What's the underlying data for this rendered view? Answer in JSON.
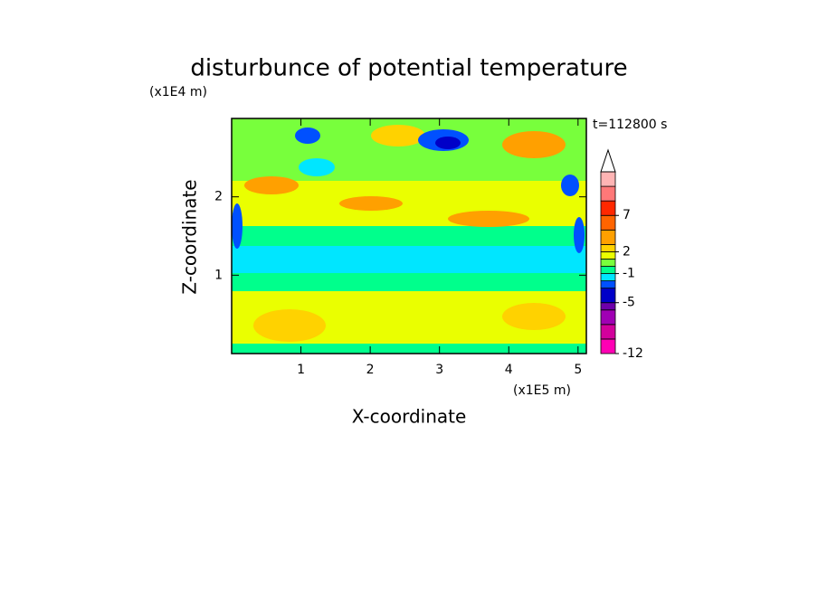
{
  "chart_data": {
    "type": "contour",
    "title": "disturbunce of potential temperature",
    "x_label": "X-coordinate",
    "y_label": "Z-coordinate",
    "x_unit": "(x1E5 m)",
    "y_unit": "(x1E4 m)",
    "annotation": "t=112800 s",
    "xlim": [
      0,
      5.12
    ],
    "xticks": [
      1,
      2,
      3,
      4,
      5
    ],
    "ylim": [
      0,
      3
    ],
    "yticks": [
      1,
      2
    ],
    "colorbar": {
      "levels": [
        -12,
        -10,
        -8,
        -6,
        -5,
        -3,
        -2,
        -1,
        0,
        1,
        2,
        3,
        5,
        7,
        9,
        11,
        13
      ],
      "colors": [
        "#ff00b4",
        "#d2009c",
        "#a000b4",
        "#6e00aa",
        "#0000c8",
        "#0050ff",
        "#00e6ff",
        "#00ff8c",
        "#78ff3c",
        "#eaff00",
        "#ffd200",
        "#ffa000",
        "#ff6400",
        "#ff2800",
        "#ff7878",
        "#ffb4b4"
      ],
      "ticks": [
        -12,
        -5,
        -1,
        2,
        7
      ]
    }
  }
}
